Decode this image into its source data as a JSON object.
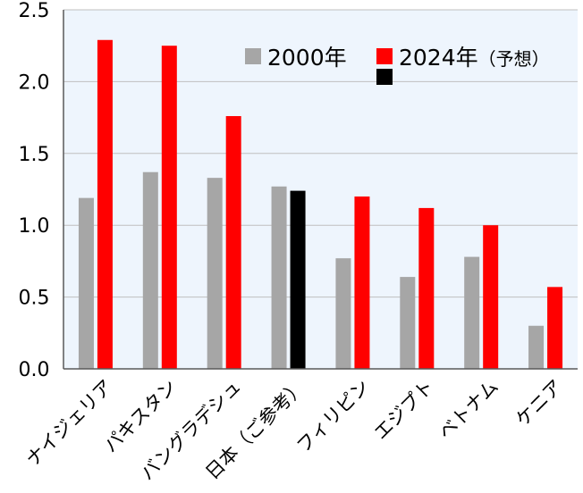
{
  "chart_data": {
    "type": "bar",
    "categories": [
      "ナイジェリア",
      "パキスタン",
      "バングラデシュ",
      "日本（ご参考）",
      "フィリピン",
      "エジプト",
      "ベトナム",
      "ケニア"
    ],
    "series": [
      {
        "name": "2000年",
        "color": "#a6a6a6",
        "values": [
          1.19,
          1.37,
          1.33,
          1.27,
          0.77,
          0.64,
          0.78,
          0.3
        ]
      },
      {
        "name": "2024年（予想）",
        "color": "#ff0000",
        "values": [
          2.29,
          2.25,
          1.76,
          1.24,
          1.2,
          1.12,
          1.0,
          0.57
        ]
      }
    ],
    "highlight": {
      "category_index": 3,
      "series_index": 1,
      "color": "#000000"
    },
    "yticks": [
      "0.0",
      "0.5",
      "1.0",
      "1.5",
      "2.0",
      "2.5"
    ],
    "ylim": [
      0,
      2.5
    ],
    "grid": true,
    "legend_position": "top-right",
    "plot_background": "#eef5fd"
  },
  "legend": {
    "series1_label": "2000年",
    "series2_year": "2024年",
    "series2_note": "（予想）"
  }
}
